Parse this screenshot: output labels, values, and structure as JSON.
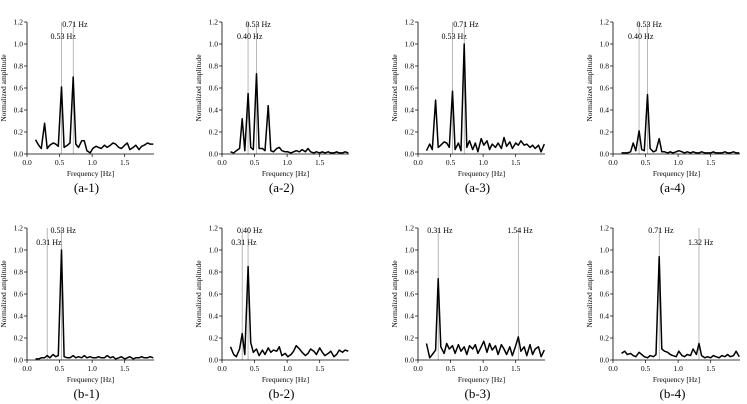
{
  "chart_data": [
    {
      "type": "line",
      "id": "a-1",
      "panel_label": "(a-1)",
      "xlabel": "Frequency [Hz]",
      "ylabel": "Normalized amplitude",
      "xlim": [
        0,
        1.95
      ],
      "ylim": [
        0,
        1.2
      ],
      "xticks": [
        "0.0",
        "0.5",
        "1.0",
        "1.5"
      ],
      "yticks": [
        "0.0",
        "0.2",
        "0.4",
        "0.6",
        "0.8",
        "1.0",
        "1.2"
      ],
      "peaks": [
        {
          "x": 0.53,
          "label": "0.53 Hz",
          "row": "lower"
        },
        {
          "x": 0.71,
          "label": "0.71 Hz",
          "row": "upper"
        }
      ],
      "x": [
        0.13,
        0.18,
        0.22,
        0.27,
        0.31,
        0.35,
        0.4,
        0.44,
        0.48,
        0.53,
        0.57,
        0.62,
        0.66,
        0.71,
        0.75,
        0.79,
        0.84,
        0.88,
        0.92,
        0.97,
        1.01,
        1.06,
        1.1,
        1.14,
        1.19,
        1.23,
        1.28,
        1.32,
        1.36,
        1.41,
        1.45,
        1.5,
        1.54,
        1.58,
        1.63,
        1.67,
        1.72,
        1.76,
        1.8,
        1.85,
        1.89,
        1.94
      ],
      "y": [
        0.13,
        0.08,
        0.05,
        0.28,
        0.05,
        0.08,
        0.1,
        0.09,
        0.07,
        0.61,
        0.06,
        0.08,
        0.1,
        0.7,
        0.09,
        0.06,
        0.12,
        0.12,
        0.03,
        0.01,
        0.05,
        0.07,
        0.06,
        0.05,
        0.08,
        0.06,
        0.08,
        0.1,
        0.09,
        0.06,
        0.05,
        0.08,
        0.1,
        0.04,
        0.06,
        0.08,
        0.04,
        0.07,
        0.08,
        0.1,
        0.09,
        0.09
      ]
    },
    {
      "type": "line",
      "id": "a-2",
      "panel_label": "(a-2)",
      "xlabel": "Frequency [Hz]",
      "ylabel": "Normalized amplitude",
      "xlim": [
        0,
        1.95
      ],
      "ylim": [
        0,
        1.2
      ],
      "xticks": [
        "0.0",
        "0.5",
        "1.0",
        "1.5"
      ],
      "yticks": [
        "0.0",
        "0.2",
        "0.4",
        "0.6",
        "0.8",
        "1.0",
        "1.2"
      ],
      "peaks": [
        {
          "x": 0.4,
          "label": "0.40 Hz",
          "row": "lower"
        },
        {
          "x": 0.53,
          "label": "0.53 Hz",
          "row": "upper"
        }
      ],
      "x": [
        0.13,
        0.18,
        0.22,
        0.27,
        0.31,
        0.35,
        0.4,
        0.44,
        0.48,
        0.53,
        0.57,
        0.62,
        0.66,
        0.71,
        0.75,
        0.79,
        0.84,
        0.88,
        0.92,
        0.97,
        1.01,
        1.06,
        1.1,
        1.14,
        1.19,
        1.23,
        1.28,
        1.32,
        1.36,
        1.41,
        1.45,
        1.5,
        1.54,
        1.58,
        1.63,
        1.67,
        1.72,
        1.76,
        1.8,
        1.85,
        1.89,
        1.94
      ],
      "y": [
        0.02,
        0.01,
        0.03,
        0.05,
        0.32,
        0.03,
        0.55,
        0.06,
        0.04,
        0.73,
        0.05,
        0.05,
        0.03,
        0.44,
        0.03,
        0.02,
        0.05,
        0.06,
        0.03,
        0.02,
        0.02,
        0.01,
        0.02,
        0.03,
        0.02,
        0.04,
        0.02,
        0.05,
        0.02,
        0.01,
        0.02,
        0.01,
        0.02,
        0.01,
        0.02,
        0.01,
        0.01,
        0.02,
        0.01,
        0.01,
        0.02,
        0.01
      ]
    },
    {
      "type": "line",
      "id": "a-3",
      "panel_label": "(a-3)",
      "xlabel": "Frequency [Hz]",
      "ylabel": "Normalized amplitude",
      "xlim": [
        0,
        1.95
      ],
      "ylim": [
        0,
        1.2
      ],
      "xticks": [
        "0.0",
        "0.5",
        "1.0",
        "1.5"
      ],
      "yticks": [
        "0.0",
        "0.2",
        "0.4",
        "0.6",
        "0.8",
        "1.0",
        "1.2"
      ],
      "peaks": [
        {
          "x": 0.53,
          "label": "0.53 Hz",
          "row": "lower"
        },
        {
          "x": 0.71,
          "label": "0.71 Hz",
          "row": "upper"
        }
      ],
      "x": [
        0.13,
        0.18,
        0.22,
        0.27,
        0.31,
        0.35,
        0.4,
        0.44,
        0.48,
        0.53,
        0.57,
        0.62,
        0.66,
        0.71,
        0.75,
        0.79,
        0.84,
        0.88,
        0.92,
        0.97,
        1.01,
        1.06,
        1.1,
        1.14,
        1.19,
        1.23,
        1.28,
        1.32,
        1.36,
        1.41,
        1.45,
        1.5,
        1.54,
        1.58,
        1.63,
        1.67,
        1.72,
        1.76,
        1.8,
        1.85,
        1.89,
        1.94
      ],
      "y": [
        0.03,
        0.09,
        0.04,
        0.49,
        0.06,
        0.08,
        0.11,
        0.1,
        0.06,
        0.57,
        0.04,
        0.1,
        0.03,
        1.0,
        0.06,
        0.12,
        0.04,
        0.1,
        0.02,
        0.14,
        0.08,
        0.12,
        0.04,
        0.09,
        0.06,
        0.1,
        0.05,
        0.15,
        0.07,
        0.11,
        0.05,
        0.1,
        0.08,
        0.12,
        0.08,
        0.09,
        0.06,
        0.08,
        0.05,
        0.08,
        0.02,
        0.09
      ]
    },
    {
      "type": "line",
      "id": "a-4",
      "panel_label": "(a-4)",
      "xlabel": "Frequency [Hz]",
      "ylabel": "Normalized amplitude",
      "xlim": [
        0,
        1.95
      ],
      "ylim": [
        0,
        1.2
      ],
      "xticks": [
        "0.0",
        "0.5",
        "1.0",
        "1.5"
      ],
      "yticks": [
        "0.0",
        "0.2",
        "0.4",
        "0.6",
        "0.8",
        "1.0",
        "1.2"
      ],
      "peaks": [
        {
          "x": 0.4,
          "label": "0.40 Hz",
          "row": "lower"
        },
        {
          "x": 0.53,
          "label": "0.53 Hz",
          "row": "upper"
        }
      ],
      "x": [
        0.13,
        0.18,
        0.22,
        0.27,
        0.31,
        0.35,
        0.4,
        0.44,
        0.48,
        0.53,
        0.57,
        0.62,
        0.66,
        0.71,
        0.75,
        0.79,
        0.84,
        0.88,
        0.92,
        0.97,
        1.01,
        1.06,
        1.1,
        1.14,
        1.19,
        1.23,
        1.28,
        1.32,
        1.36,
        1.41,
        1.45,
        1.5,
        1.54,
        1.58,
        1.63,
        1.67,
        1.72,
        1.76,
        1.8,
        1.85,
        1.89,
        1.94
      ],
      "y": [
        0.01,
        0.01,
        0.01,
        0.02,
        0.1,
        0.03,
        0.21,
        0.04,
        0.03,
        0.54,
        0.05,
        0.02,
        0.03,
        0.14,
        0.02,
        0.02,
        0.01,
        0.02,
        0.01,
        0.02,
        0.03,
        0.02,
        0.01,
        0.02,
        0.01,
        0.02,
        0.01,
        0.01,
        0.02,
        0.01,
        0.01,
        0.01,
        0.02,
        0.01,
        0.01,
        0.01,
        0.02,
        0.01,
        0.01,
        0.02,
        0.01,
        0.01
      ]
    },
    {
      "type": "line",
      "id": "b-1",
      "panel_label": "(b-1)",
      "xlabel": "Frequency [Hz]",
      "ylabel": "Normalized amplitude",
      "xlim": [
        0,
        1.95
      ],
      "ylim": [
        0,
        1.2
      ],
      "xticks": [
        "0.0",
        "0.5",
        "1.0",
        "1.5"
      ],
      "yticks": [
        "0.0",
        "0.2",
        "0.4",
        "0.6",
        "0.8",
        "1.0",
        "1.2"
      ],
      "peaks": [
        {
          "x": 0.31,
          "label": "0.31 Hz",
          "row": "lower"
        },
        {
          "x": 0.53,
          "label": "0.53 Hz",
          "row": "upper"
        }
      ],
      "x": [
        0.13,
        0.18,
        0.22,
        0.27,
        0.31,
        0.35,
        0.4,
        0.44,
        0.48,
        0.53,
        0.57,
        0.62,
        0.66,
        0.71,
        0.75,
        0.79,
        0.84,
        0.88,
        0.92,
        0.97,
        1.01,
        1.06,
        1.1,
        1.14,
        1.19,
        1.23,
        1.28,
        1.32,
        1.36,
        1.41,
        1.45,
        1.5,
        1.54,
        1.58,
        1.63,
        1.67,
        1.72,
        1.76,
        1.8,
        1.85,
        1.89,
        1.94
      ],
      "y": [
        0.01,
        0.01,
        0.02,
        0.02,
        0.04,
        0.02,
        0.05,
        0.03,
        0.04,
        1.0,
        0.03,
        0.02,
        0.02,
        0.04,
        0.02,
        0.03,
        0.02,
        0.04,
        0.02,
        0.03,
        0.02,
        0.02,
        0.03,
        0.02,
        0.02,
        0.04,
        0.02,
        0.03,
        0.01,
        0.02,
        0.03,
        0.01,
        0.02,
        0.03,
        0.01,
        0.02,
        0.02,
        0.03,
        0.02,
        0.02,
        0.03,
        0.02
      ]
    },
    {
      "type": "line",
      "id": "b-2",
      "panel_label": "(b-2)",
      "xlabel": "Frequency [Hz]",
      "ylabel": "Normalized amplitude",
      "xlim": [
        0,
        1.95
      ],
      "ylim": [
        0,
        1.2
      ],
      "xticks": [
        "0.0",
        "0.5",
        "1.0",
        "1.5"
      ],
      "yticks": [
        "0.0",
        "0.2",
        "0.4",
        "0.6",
        "0.8",
        "1.0",
        "1.2"
      ],
      "peaks": [
        {
          "x": 0.31,
          "label": "0.31 Hz",
          "row": "lower"
        },
        {
          "x": 0.4,
          "label": "0.40 Hz",
          "row": "upper"
        }
      ],
      "x": [
        0.13,
        0.18,
        0.22,
        0.27,
        0.31,
        0.35,
        0.4,
        0.44,
        0.48,
        0.53,
        0.57,
        0.62,
        0.66,
        0.71,
        0.75,
        0.79,
        0.84,
        0.88,
        0.92,
        0.97,
        1.01,
        1.06,
        1.1,
        1.14,
        1.19,
        1.23,
        1.28,
        1.32,
        1.36,
        1.41,
        1.45,
        1.5,
        1.54,
        1.58,
        1.63,
        1.67,
        1.72,
        1.76,
        1.8,
        1.85,
        1.89,
        1.94
      ],
      "y": [
        0.12,
        0.05,
        0.03,
        0.1,
        0.24,
        0.05,
        0.85,
        0.16,
        0.07,
        0.1,
        0.04,
        0.09,
        0.05,
        0.11,
        0.07,
        0.09,
        0.08,
        0.12,
        0.04,
        0.06,
        0.03,
        0.05,
        0.08,
        0.13,
        0.1,
        0.07,
        0.04,
        0.06,
        0.1,
        0.08,
        0.05,
        0.11,
        0.07,
        0.04,
        0.06,
        0.08,
        0.03,
        0.05,
        0.09,
        0.07,
        0.09,
        0.08
      ]
    },
    {
      "type": "line",
      "id": "b-3",
      "panel_label": "(b-3)",
      "xlabel": "Frequency [Hz]",
      "ylabel": "Normalized amplitude",
      "xlim": [
        0,
        1.95
      ],
      "ylim": [
        0,
        1.2
      ],
      "xticks": [
        "0.0",
        "0.5",
        "1.0",
        "1.5"
      ],
      "yticks": [
        "0.0",
        "0.2",
        "0.4",
        "0.6",
        "0.8",
        "1.0",
        "1.2"
      ],
      "peaks": [
        {
          "x": 0.31,
          "label": "0.31 Hz",
          "row": "upper"
        },
        {
          "x": 1.54,
          "label": "1.54 Hz",
          "row": "upper"
        }
      ],
      "x": [
        0.13,
        0.18,
        0.22,
        0.27,
        0.31,
        0.35,
        0.4,
        0.44,
        0.48,
        0.53,
        0.57,
        0.62,
        0.66,
        0.71,
        0.75,
        0.79,
        0.84,
        0.88,
        0.92,
        0.97,
        1.01,
        1.06,
        1.1,
        1.14,
        1.19,
        1.23,
        1.28,
        1.32,
        1.36,
        1.41,
        1.45,
        1.5,
        1.54,
        1.58,
        1.63,
        1.67,
        1.72,
        1.76,
        1.8,
        1.85,
        1.89,
        1.94
      ],
      "y": [
        0.15,
        0.02,
        0.05,
        0.09,
        0.74,
        0.12,
        0.06,
        0.15,
        0.1,
        0.13,
        0.06,
        0.14,
        0.08,
        0.12,
        0.05,
        0.13,
        0.1,
        0.14,
        0.06,
        0.12,
        0.17,
        0.07,
        0.15,
        0.09,
        0.13,
        0.05,
        0.14,
        0.1,
        0.05,
        0.12,
        0.04,
        0.13,
        0.21,
        0.08,
        0.12,
        0.04,
        0.14,
        0.05,
        0.1,
        0.12,
        0.03,
        0.09
      ]
    },
    {
      "type": "line",
      "id": "b-4",
      "panel_label": "(b-4)",
      "xlabel": "Frequency [Hz]",
      "ylabel": "Normalized amplitude",
      "xlim": [
        0,
        1.95
      ],
      "ylim": [
        0,
        1.2
      ],
      "xticks": [
        "0.0",
        "0.5",
        "1.0",
        "1.5"
      ],
      "yticks": [
        "0.0",
        "0.2",
        "0.4",
        "0.6",
        "0.8",
        "1.0",
        "1.2"
      ],
      "peaks": [
        {
          "x": 0.71,
          "label": "0.71 Hz",
          "row": "upper"
        },
        {
          "x": 1.32,
          "label": "1.32 Hz",
          "row": "lower"
        }
      ],
      "x": [
        0.13,
        0.18,
        0.22,
        0.27,
        0.31,
        0.35,
        0.4,
        0.44,
        0.48,
        0.53,
        0.57,
        0.62,
        0.66,
        0.71,
        0.75,
        0.79,
        0.84,
        0.88,
        0.92,
        0.97,
        1.01,
        1.06,
        1.1,
        1.14,
        1.19,
        1.23,
        1.28,
        1.32,
        1.36,
        1.41,
        1.45,
        1.5,
        1.54,
        1.58,
        1.63,
        1.67,
        1.72,
        1.76,
        1.8,
        1.85,
        1.89,
        1.94
      ],
      "y": [
        0.06,
        0.08,
        0.05,
        0.06,
        0.04,
        0.03,
        0.07,
        0.05,
        0.03,
        0.02,
        0.04,
        0.03,
        0.05,
        0.94,
        0.1,
        0.08,
        0.07,
        0.05,
        0.04,
        0.03,
        0.08,
        0.04,
        0.03,
        0.05,
        0.04,
        0.1,
        0.05,
        0.15,
        0.04,
        0.02,
        0.03,
        0.02,
        0.04,
        0.03,
        0.02,
        0.04,
        0.03,
        0.05,
        0.03,
        0.04,
        0.08,
        0.03
      ]
    }
  ]
}
